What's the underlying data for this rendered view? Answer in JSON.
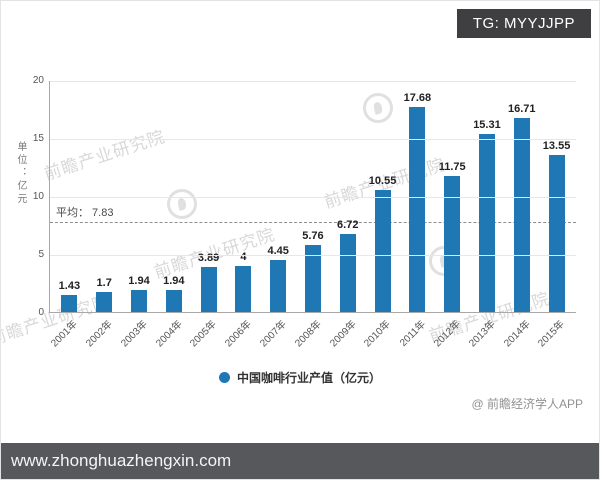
{
  "header": {
    "tg_label": "TG: MYYJJPP"
  },
  "chart_data": {
    "type": "bar",
    "title": "",
    "categories": [
      "2001年",
      "2002年",
      "2003年",
      "2004年",
      "2005年",
      "2006年",
      "2007年",
      "2008年",
      "2009年",
      "2010年",
      "2011年",
      "2012年",
      "2013年",
      "2014年",
      "2015年"
    ],
    "values": [
      1.43,
      1.7,
      1.94,
      1.94,
      3.89,
      4,
      4.45,
      5.76,
      6.72,
      10.55,
      17.68,
      11.75,
      15.31,
      16.71,
      13.55
    ],
    "xlabel": "",
    "ylabel": "单位：亿元",
    "ylim": [
      0,
      20
    ],
    "yticks": [
      0,
      5,
      10,
      15,
      20
    ],
    "grid": true,
    "average": {
      "label": "平均： 7.83",
      "value": 7.83
    },
    "bar_color": "#1f78b4",
    "legend_position": "bottom",
    "legend": [
      {
        "label": "中国咖啡行业产值（亿元）",
        "color": "#1f78b4"
      }
    ]
  },
  "watermark": {
    "text": "前瞻产业研究院"
  },
  "footer": {
    "credit": "@ 前瞻经济学人APP",
    "url": "www.zhonghuazhengxin.com"
  }
}
